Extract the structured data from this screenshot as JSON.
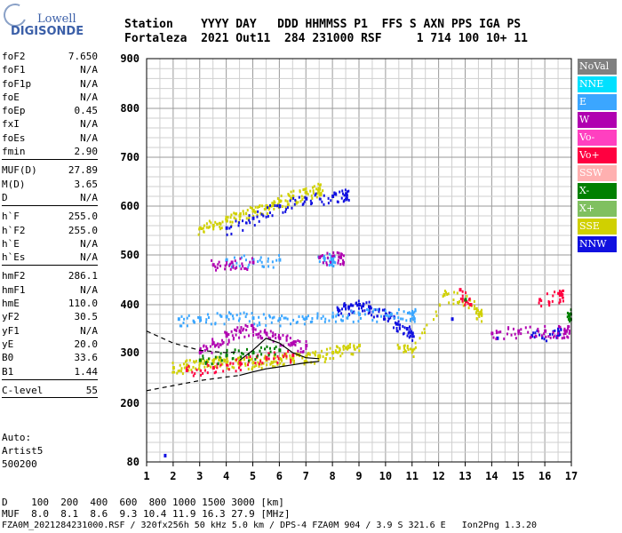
{
  "logo": {
    "top": "Lowell",
    "bottom": "DIGISONDE"
  },
  "header": {
    "line1": "Station    YYYY DAY   DDD HHMMSS P1  FFS S AXN PPS IGA PS",
    "line2": "Fortaleza  2021 Out11  284 231000 RSF     1 714 100 10+ 11"
  },
  "params": {
    "group1": [
      {
        "label": "foF2",
        "value": "7.650"
      },
      {
        "label": "foF1",
        "value": "N/A"
      },
      {
        "label": "foF1p",
        "value": "N/A"
      },
      {
        "label": "foE",
        "value": "N/A"
      },
      {
        "label": "foEp",
        "value": "0.45"
      },
      {
        "label": "fxI",
        "value": "N/A"
      },
      {
        "label": "foEs",
        "value": "N/A"
      },
      {
        "label": "fmin",
        "value": "2.90"
      }
    ],
    "group2": [
      {
        "label": "MUF(D)",
        "value": "27.89"
      },
      {
        "label": "M(D)",
        "value": "3.65"
      },
      {
        "label": "D",
        "value": "N/A"
      }
    ],
    "group3": [
      {
        "label": "h`F",
        "value": "255.0"
      },
      {
        "label": "h`F2",
        "value": "255.0"
      },
      {
        "label": "h`E",
        "value": "N/A"
      },
      {
        "label": "h`Es",
        "value": "N/A"
      }
    ],
    "group4": [
      {
        "label": "hmF2",
        "value": "286.1"
      },
      {
        "label": "hmF1",
        "value": "N/A"
      },
      {
        "label": "hmE",
        "value": "110.0"
      },
      {
        "label": "yF2",
        "value": "30.5"
      },
      {
        "label": "yF1",
        "value": "N/A"
      },
      {
        "label": "yE",
        "value": "20.0"
      },
      {
        "label": "B0",
        "value": "33.6"
      },
      {
        "label": "B1",
        "value": "1.44"
      }
    ],
    "group5": [
      {
        "label": "C-level",
        "value": "55"
      }
    ]
  },
  "auto": {
    "line1": "Auto:",
    "line2": "Artist5",
    "line3": "500200"
  },
  "legend": [
    {
      "label": "NoVal",
      "color": "#808080"
    },
    {
      "label": "NNE",
      "color": "#00e0ff"
    },
    {
      "label": "E",
      "color": "#3ba6ff"
    },
    {
      "label": "W",
      "color": "#b000b0"
    },
    {
      "label": "Vo-",
      "color": "#ff40c0"
    },
    {
      "label": "Vo+",
      "color": "#ff0040"
    },
    {
      "label": "SSW",
      "color": "#ffb0b0"
    },
    {
      "label": "X-",
      "color": "#008000"
    },
    {
      "label": "X+",
      "color": "#80c060"
    },
    {
      "label": "SSE",
      "color": "#d0d000"
    },
    {
      "label": "NNW",
      "color": "#1010e0"
    }
  ],
  "footer": {
    "line1": "D    100  200  400  600  800 1000 1500 3000 [km]",
    "line2": "MUF  8.0  8.1  8.6  9.3 10.4 11.9 16.3 27.9 [MHz]",
    "line3": "FZA0M_2021284231000.RSF / 320fx256h 50 kHz 5.0 km / DPS-4 FZA0M 904 / 3.9 S 321.6 E   Ion2Png 1.3.20"
  },
  "chart_data": {
    "type": "scatter",
    "x_ticks": [
      1,
      2,
      3,
      4,
      5,
      6,
      7,
      8,
      9,
      10,
      11,
      12,
      13,
      14,
      15,
      16,
      17
    ],
    "y_ticks": [
      80,
      200,
      300,
      400,
      500,
      600,
      700,
      800,
      900
    ],
    "xlim": [
      1,
      17
    ],
    "y_range": [
      80,
      900
    ],
    "y_scale": "mixed: 80-300 compressed, 300-900 linear",
    "grid": true,
    "traces": [
      {
        "name": "NNW",
        "color": "#1010e0",
        "points": [
          [
            8.2,
            390
          ],
          [
            8.6,
            395
          ],
          [
            9.0,
            400
          ],
          [
            9.4,
            395
          ],
          [
            10.0,
            380
          ],
          [
            10.4,
            360
          ],
          [
            10.8,
            350
          ],
          [
            11.0,
            340
          ],
          [
            12.5,
            370
          ],
          [
            14.2,
            330
          ],
          [
            15.5,
            335
          ],
          [
            16.5,
            340
          ]
        ]
      },
      {
        "name": "E",
        "color": "#3ba6ff",
        "points": [
          [
            2.2,
            370
          ],
          [
            3.0,
            372
          ],
          [
            4.0,
            375
          ],
          [
            5.0,
            372
          ],
          [
            6.0,
            370
          ],
          [
            7.0,
            372
          ],
          [
            8.0,
            375
          ],
          [
            9.0,
            380
          ],
          [
            10.2,
            380
          ],
          [
            11.0,
            380
          ]
        ]
      },
      {
        "name": "W",
        "color": "#b000b0",
        "points": [
          [
            3.0,
            300
          ],
          [
            3.5,
            320
          ],
          [
            4.0,
            335
          ],
          [
            4.5,
            345
          ],
          [
            5.0,
            350
          ],
          [
            5.5,
            340
          ],
          [
            6.0,
            330
          ],
          [
            6.5,
            320
          ],
          [
            7.0,
            315
          ],
          [
            14.0,
            340
          ],
          [
            15.0,
            345
          ],
          [
            16.0,
            345
          ],
          [
            16.8,
            345
          ]
        ]
      },
      {
        "name": "SSE",
        "color": "#d0d000",
        "points": [
          [
            2.0,
            270
          ],
          [
            2.5,
            275
          ],
          [
            3.0,
            280
          ],
          [
            3.5,
            282
          ],
          [
            4.0,
            280
          ],
          [
            4.5,
            282
          ],
          [
            5.0,
            280
          ],
          [
            5.5,
            285
          ],
          [
            6.0,
            288
          ],
          [
            6.5,
            290
          ],
          [
            7.0,
            292
          ],
          [
            7.5,
            292
          ],
          [
            8.0,
            300
          ],
          [
            8.5,
            310
          ],
          [
            9.0,
            315
          ],
          [
            10.5,
            310
          ],
          [
            11.0,
            305
          ],
          [
            12.2,
            420
          ],
          [
            13.0,
            410
          ],
          [
            13.5,
            380
          ]
        ]
      },
      {
        "name": "Vo+",
        "color": "#ff0040",
        "points": [
          [
            2.5,
            265
          ],
          [
            3.5,
            270
          ],
          [
            4.5,
            280
          ],
          [
            5.5,
            290
          ],
          [
            6.5,
            295
          ],
          [
            12.8,
            430
          ],
          [
            13.2,
            400
          ],
          [
            15.8,
            410
          ],
          [
            16.6,
            420
          ]
        ]
      },
      {
        "name": "X-",
        "color": "#008000",
        "points": [
          [
            3.0,
            285
          ],
          [
            4.0,
            295
          ],
          [
            5.0,
            300
          ],
          [
            6.0,
            305
          ],
          [
            13.0,
            410
          ],
          [
            16.9,
            380
          ]
        ]
      },
      {
        "name": "SSE upper",
        "color": "#d0d000",
        "points": [
          [
            3.0,
            555
          ],
          [
            3.5,
            560
          ],
          [
            4.0,
            570
          ],
          [
            4.5,
            580
          ],
          [
            5.0,
            590
          ],
          [
            5.5,
            600
          ],
          [
            6.0,
            610
          ],
          [
            6.5,
            620
          ],
          [
            7.0,
            628
          ],
          [
            7.5,
            635
          ]
        ]
      },
      {
        "name": "E upper",
        "color": "#3ba6ff",
        "points": [
          [
            4.0,
            490
          ],
          [
            5.0,
            490
          ],
          [
            6.0,
            490
          ],
          [
            7.5,
            495
          ],
          [
            8.0,
            492
          ]
        ]
      },
      {
        "name": "NNW upper",
        "color": "#1010e0",
        "points": [
          [
            4.0,
            555
          ],
          [
            5.0,
            575
          ],
          [
            6.0,
            600
          ],
          [
            7.0,
            615
          ],
          [
            8.0,
            620
          ],
          [
            8.5,
            625
          ]
        ]
      },
      {
        "name": "W upper",
        "color": "#b000b0",
        "points": [
          [
            3.5,
            480
          ],
          [
            4.2,
            485
          ],
          [
            5.0,
            485
          ],
          [
            7.5,
            495
          ],
          [
            8.3,
            495
          ]
        ]
      }
    ],
    "curves": [
      {
        "name": "profile upper dashed",
        "style": "dashed",
        "points": [
          [
            1,
            345
          ],
          [
            2,
            320
          ],
          [
            3,
            305
          ],
          [
            4,
            300
          ],
          [
            4.5,
            302
          ]
        ]
      },
      {
        "name": "profile lower dashed",
        "style": "dashed",
        "points": [
          [
            1,
            225
          ],
          [
            2,
            235
          ],
          [
            3,
            245
          ],
          [
            4,
            252
          ],
          [
            4.5,
            255
          ]
        ]
      },
      {
        "name": "profile solid",
        "style": "solid",
        "points": [
          [
            4.5,
            255
          ],
          [
            5.0,
            262
          ],
          [
            5.5,
            268
          ],
          [
            6.0,
            272
          ],
          [
            6.5,
            276
          ],
          [
            7.0,
            280
          ],
          [
            7.5,
            283
          ]
        ]
      },
      {
        "name": "trace solid upper",
        "style": "solid",
        "points": [
          [
            4.5,
            285
          ],
          [
            5.0,
            305
          ],
          [
            5.5,
            330
          ],
          [
            6.0,
            320
          ],
          [
            6.5,
            300
          ],
          [
            7.0,
            290
          ],
          [
            7.5,
            288
          ]
        ]
      }
    ]
  }
}
